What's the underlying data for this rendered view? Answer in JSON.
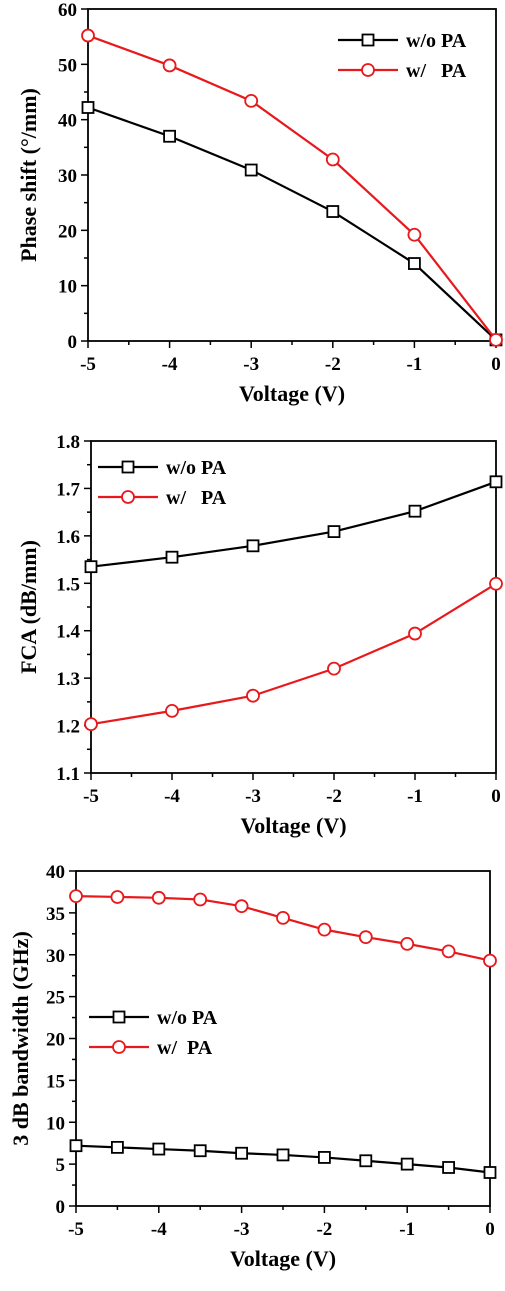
{
  "chart_data": [
    {
      "type": "line",
      "xlabel": "Voltage (V)",
      "ylabel": "Phase shift (°/mm)",
      "xlim": [
        -5,
        0
      ],
      "ylim": [
        0,
        60
      ],
      "xticks": [
        "-5",
        "-4",
        "-3",
        "-2",
        "-1",
        "0"
      ],
      "yticks": [
        "0",
        "10",
        "20",
        "30",
        "40",
        "50",
        "60"
      ],
      "grid": false,
      "legend_position": "top-right",
      "series": [
        {
          "name": "w/o PA",
          "marker": "square",
          "color": "#000000",
          "x": [
            -5,
            -4,
            -3,
            -2,
            -1,
            0
          ],
          "y": [
            42.2,
            37.0,
            30.9,
            23.4,
            14.0,
            0.2
          ]
        },
        {
          "name": "w/   PA",
          "marker": "circle",
          "color": "#e8191c",
          "x": [
            -5,
            -4,
            -3,
            -2,
            -1,
            0
          ],
          "y": [
            55.2,
            49.8,
            43.4,
            32.8,
            19.2,
            0.2
          ]
        }
      ]
    },
    {
      "type": "line",
      "xlabel": "Voltage (V)",
      "ylabel": "FCA (dB/mm)",
      "xlim": [
        -5,
        0
      ],
      "ylim": [
        1.1,
        1.8
      ],
      "xticks": [
        "-5",
        "-4",
        "-3",
        "-2",
        "-1",
        "0"
      ],
      "yticks": [
        "1.1",
        "1.2",
        "1.3",
        "1.4",
        "1.5",
        "1.6",
        "1.7",
        "1.8"
      ],
      "grid": false,
      "legend_position": "top-left",
      "series": [
        {
          "name": "w/o PA",
          "marker": "square",
          "color": "#000000",
          "x": [
            -5,
            -4,
            -3,
            -2,
            -1,
            0
          ],
          "y": [
            1.535,
            1.555,
            1.579,
            1.609,
            1.652,
            1.714
          ]
        },
        {
          "name": "w/   PA",
          "marker": "circle",
          "color": "#e8191c",
          "x": [
            -5,
            -4,
            -3,
            -2,
            -1,
            0
          ],
          "y": [
            1.203,
            1.231,
            1.263,
            1.32,
            1.394,
            1.499
          ]
        }
      ]
    },
    {
      "type": "line",
      "xlabel": "Voltage (V)",
      "ylabel": "3 dB bandwidth (GHz)",
      "xlim": [
        -5,
        0
      ],
      "ylim": [
        0,
        40
      ],
      "xticks": [
        "-5",
        "-4",
        "-3",
        "-2",
        "-1",
        "0"
      ],
      "yticks": [
        "0",
        "5",
        "10",
        "15",
        "20",
        "25",
        "30",
        "35",
        "40"
      ],
      "grid": false,
      "legend_position": "middle-left",
      "series": [
        {
          "name": "w/o PA",
          "marker": "square",
          "color": "#000000",
          "x": [
            -5,
            -4.5,
            -4,
            -3.5,
            -3,
            -2.5,
            -2,
            -1.5,
            -1,
            -0.5,
            0
          ],
          "y": [
            7.2,
            7.0,
            6.8,
            6.6,
            6.3,
            6.1,
            5.8,
            5.4,
            5.0,
            4.6,
            4.0
          ]
        },
        {
          "name": "w/  PA",
          "marker": "circle",
          "color": "#e8191c",
          "x": [
            -5,
            -4.5,
            -4,
            -3.5,
            -3,
            -2.5,
            -2,
            -1.5,
            -1,
            -0.5,
            0
          ],
          "y": [
            37.0,
            36.9,
            36.8,
            36.6,
            35.8,
            34.4,
            33.0,
            32.1,
            31.3,
            30.4,
            29.3
          ]
        }
      ]
    }
  ]
}
